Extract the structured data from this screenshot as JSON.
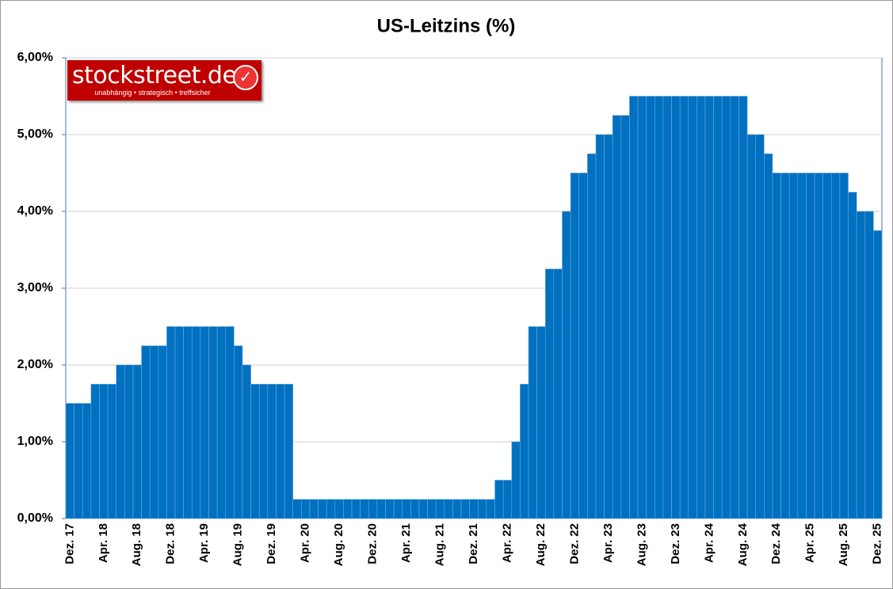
{
  "chart_data": {
    "type": "bar",
    "title": "US-Leitzins (%)",
    "categories": [
      "Dez. 17",
      null,
      null,
      null,
      "Apr. 18",
      null,
      null,
      null,
      "Aug. 18",
      null,
      null,
      null,
      "Dez. 18",
      null,
      null,
      null,
      "Apr. 19",
      null,
      null,
      null,
      "Aug. 19",
      null,
      null,
      null,
      "Dez. 19",
      null,
      null,
      null,
      "Apr. 20",
      null,
      null,
      null,
      "Aug. 20",
      null,
      null,
      null,
      "Dez. 20",
      null,
      null,
      null,
      "Apr. 21",
      null,
      null,
      null,
      "Aug. 21",
      null,
      null,
      null,
      "Dez. 21",
      null,
      null,
      null,
      "Apr. 22",
      null,
      null,
      null,
      "Aug. 22",
      null,
      null,
      null,
      "Dez. 22",
      null,
      null,
      null,
      "Apr. 23",
      null,
      null,
      null,
      "Aug. 23",
      null,
      null,
      null,
      "Dez. 23",
      null,
      null,
      null,
      "Apr. 24",
      null,
      null,
      null,
      "Aug. 24",
      null,
      null,
      null,
      "Dez. 24",
      null,
      null,
      null,
      "Apr. 25",
      null,
      null,
      null,
      "Aug. 25",
      null,
      null,
      null,
      "Dez. 25"
    ],
    "values": [
      1.5,
      1.5,
      1.5,
      1.75,
      1.75,
      1.75,
      2.0,
      2.0,
      2.0,
      2.25,
      2.25,
      2.25,
      2.5,
      2.5,
      2.5,
      2.5,
      2.5,
      2.5,
      2.5,
      2.5,
      2.25,
      2.0,
      1.75,
      1.75,
      1.75,
      1.75,
      1.75,
      0.25,
      0.25,
      0.25,
      0.25,
      0.25,
      0.25,
      0.25,
      0.25,
      0.25,
      0.25,
      0.25,
      0.25,
      0.25,
      0.25,
      0.25,
      0.25,
      0.25,
      0.25,
      0.25,
      0.25,
      0.25,
      0.25,
      0.25,
      0.25,
      0.5,
      0.5,
      1.0,
      1.75,
      2.5,
      2.5,
      3.25,
      3.25,
      4.0,
      4.5,
      4.5,
      4.75,
      5.0,
      5.0,
      5.25,
      5.25,
      5.5,
      5.5,
      5.5,
      5.5,
      5.5,
      5.5,
      5.5,
      5.5,
      5.5,
      5.5,
      5.5,
      5.5,
      5.5,
      5.5,
      5.0,
      5.0,
      4.75,
      4.5,
      4.5,
      4.5,
      4.5,
      4.5,
      4.5,
      4.5,
      4.5,
      4.5,
      4.25,
      4.0,
      4.0,
      3.75
    ],
    "color": "#0070c0",
    "ylim": [
      0,
      6
    ],
    "yticks": [
      {
        "value": 0,
        "label": "0,00%"
      },
      {
        "value": 1,
        "label": "1,00%"
      },
      {
        "value": 2,
        "label": "2,00%"
      },
      {
        "value": 3,
        "label": "3,00%"
      },
      {
        "value": 4,
        "label": "4,00%"
      },
      {
        "value": 5,
        "label": "5,00%"
      },
      {
        "value": 6,
        "label": "6,00%"
      }
    ],
    "grid": true
  },
  "logo": {
    "name": "stockstreet.de",
    "tagline": "unabhängig • strategisch • treffsicher"
  }
}
